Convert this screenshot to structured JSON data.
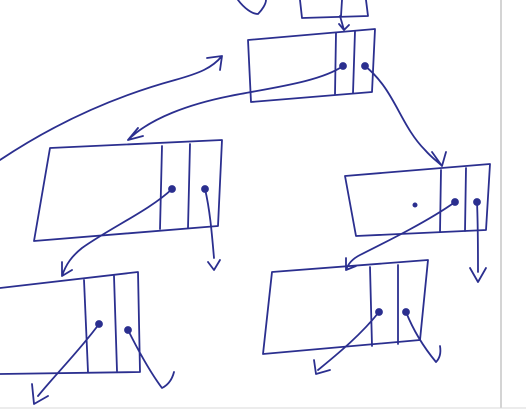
{
  "diagram": {
    "kind": "hand-drawn linked tree nodes",
    "node_count": 6,
    "colors": {
      "ink": "#2b2f8f",
      "paper": "#ffffff",
      "rule": "#a9a9a9",
      "edge_shadow": "#d8d8d8"
    },
    "nodes": [
      {
        "id": "root",
        "fields": 3,
        "pointers": [
          "left",
          "right"
        ]
      },
      {
        "id": "left-child",
        "fields": 3,
        "pointers": [
          "left",
          "right"
        ]
      },
      {
        "id": "right-child",
        "fields": 3,
        "pointers": [
          "left",
          "right"
        ]
      },
      {
        "id": "left-left-child",
        "fields": 3,
        "pointers": [
          "left",
          "right"
        ]
      },
      {
        "id": "right-left-child",
        "fields": 3,
        "pointers": [
          "left",
          "right"
        ]
      },
      {
        "id": "top-stub",
        "fields": 2,
        "pointers": []
      }
    ],
    "links": [
      {
        "from": "root",
        "to": "left-child",
        "pointer": "left"
      },
      {
        "from": "root",
        "to": "right-child",
        "pointer": "right"
      },
      {
        "from": "left-child",
        "to": "left-left-child",
        "pointer": "left"
      },
      {
        "from": "right-child",
        "to": "right-left-child",
        "pointer": "left"
      },
      {
        "from": "top-stub",
        "to": "root",
        "pointer": "down"
      }
    ]
  }
}
